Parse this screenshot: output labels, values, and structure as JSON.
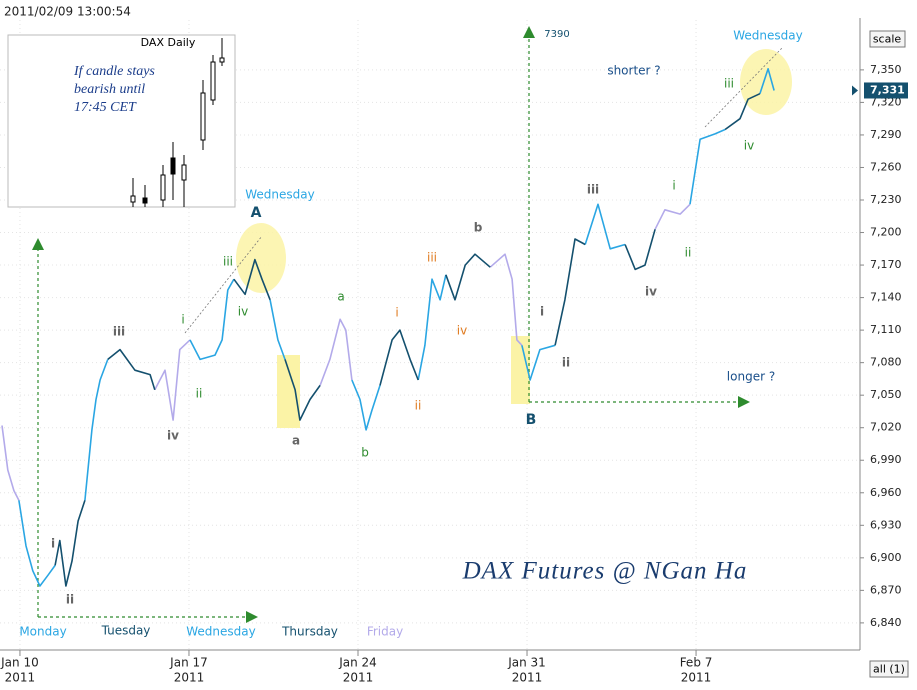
{
  "chart_data": {
    "type": "line",
    "timestamp": "2011/02/09 13:00:54",
    "watermark": "DAX Futures @ NGan Ha",
    "scale_button": "scale",
    "all_button": "all (1)",
    "inset": {
      "title": "DAX Daily",
      "note": [
        "If candle stays",
        "bearish until",
        "17:45 CET"
      ]
    },
    "last": {
      "value": 7331,
      "label": "7,331"
    },
    "xlim": [
      -0.59,
      24.85
    ],
    "xticks": [
      {
        "value": 0,
        "label": "Jan 10",
        "year": "2011"
      },
      {
        "value": 5,
        "label": "Jan 17",
        "year": "2011"
      },
      {
        "value": 10,
        "label": "Jan 24",
        "year": "2011"
      },
      {
        "value": 15,
        "label": "Jan 31",
        "year": "2011"
      },
      {
        "value": 20,
        "label": "Feb 7",
        "year": "2011"
      }
    ],
    "ylim": [
      6815,
      7396
    ],
    "yticks": [
      {
        "value": 6840,
        "label": "6,840"
      },
      {
        "value": 6870,
        "label": "6,870"
      },
      {
        "value": 6900,
        "label": "6,900"
      },
      {
        "value": 6930,
        "label": "6,930"
      },
      {
        "value": 6960,
        "label": "6,960"
      },
      {
        "value": 6990,
        "label": "6,990"
      },
      {
        "value": 7020,
        "label": "7,020"
      },
      {
        "value": 7050,
        "label": "7,050"
      },
      {
        "value": 7080,
        "label": "7,080"
      },
      {
        "value": 7110,
        "label": "7,110"
      },
      {
        "value": 7140,
        "label": "7,140"
      },
      {
        "value": 7170,
        "label": "7,170"
      },
      {
        "value": 7200,
        "label": "7,200"
      },
      {
        "value": 7230,
        "label": "7,230"
      },
      {
        "value": 7260,
        "label": "7,260"
      },
      {
        "value": 7290,
        "label": "7,290"
      },
      {
        "value": 7320,
        "label": "7,320"
      },
      {
        "value": 7350,
        "label": "7,350"
      }
    ],
    "grid": true,
    "series": [
      {
        "color": "#b3aaea",
        "x": [
          -0.53,
          -0.36,
          -0.18,
          -0.03,
          null,
          3.99,
          4.29,
          4.53,
          4.73,
          5.03,
          null,
          8.88,
          9.17,
          9.47,
          9.64,
          9.82,
          null,
          13.91,
          14.35,
          14.56,
          14.7,
          14.85,
          null,
          18.79,
          19.08,
          19.53,
          19.82
        ],
        "values": [
          7022,
          6981,
          6962,
          6953,
          null,
          7055,
          7073,
          7027,
          7092,
          7101,
          null,
          7059,
          7083,
          7120,
          7110,
          7064,
          null,
          7168,
          7180,
          7157,
          7101,
          7096,
          null,
          7203,
          7221,
          7217,
          7226
        ]
      },
      {
        "color": "#2aa6e3",
        "x": [
          -0.03,
          0.18,
          0.38,
          0.59,
          0.83,
          1.04,
          null,
          1.92,
          2.13,
          2.25,
          2.37,
          2.6,
          null,
          5.03,
          5.33,
          5.77,
          5.98,
          6.15,
          6.33,
          null,
          7.4,
          7.63,
          7.84,
          null,
          9.82,
          10.06,
          10.24,
          10.41,
          10.65,
          null,
          11.78,
          11.98,
          12.19,
          12.43,
          12.6,
          null,
          14.85,
          15.09,
          15.38,
          15.83,
          null,
          16.72,
          17.1,
          17.46,
          17.9,
          null,
          19.82,
          20.12,
          20.56,
          20.86,
          null,
          21.89,
          22.13,
          22.31
        ],
        "values": [
          6953,
          6911,
          6888,
          6874,
          6884,
          6893,
          null,
          6953,
          7018,
          7046,
          7064,
          7083,
          null,
          7101,
          7083,
          7087,
          7101,
          7147,
          7157,
          null,
          7138,
          7101,
          7083,
          null,
          7064,
          7046,
          7018,
          7036,
          7059,
          null,
          7064,
          7096,
          7157,
          7138,
          7161,
          null,
          7096,
          7064,
          7092,
          7096,
          null,
          7189,
          7226,
          7185,
          7189,
          null,
          7226,
          7286,
          7291,
          7295,
          null,
          7328,
          7351,
          7331
        ]
      },
      {
        "color": "#14506e",
        "x": [
          1.04,
          1.18,
          1.36,
          1.54,
          1.72,
          1.92,
          null,
          2.6,
          2.96,
          3.4,
          3.85,
          3.99,
          null,
          6.33,
          6.66,
          6.95,
          7.16,
          7.4,
          null,
          7.84,
          8.14,
          8.28,
          8.58,
          8.88,
          null,
          10.65,
          11.01,
          11.24,
          11.54,
          11.78,
          null,
          12.6,
          12.87,
          13.17,
          13.46,
          13.91,
          null,
          15.83,
          16.12,
          16.42,
          16.72,
          null,
          17.9,
          18.2,
          18.49,
          18.79,
          null,
          20.86,
          21.3,
          21.54,
          21.89
        ],
        "values": [
          6893,
          6916,
          6874,
          6897,
          6934,
          6953,
          null,
          7083,
          7092,
          7073,
          7069,
          7055,
          null,
          7157,
          7143,
          7175,
          7157,
          7138,
          null,
          7083,
          7055,
          7027,
          7046,
          7059,
          null,
          7059,
          7101,
          7110,
          7083,
          7064,
          null,
          7161,
          7138,
          7170,
          7180,
          7168,
          null,
          7096,
          7138,
          7194,
          7189,
          null,
          7189,
          7166,
          7170,
          7203,
          null,
          7295,
          7305,
          7323,
          7328
        ]
      }
    ],
    "day_labels": [
      {
        "text": "Monday",
        "color": "#2aa6e3"
      },
      {
        "text": "Tuesday",
        "color": "#14506e"
      },
      {
        "text": "Wednesday",
        "color": "#2aa6e3"
      },
      {
        "text": "Thursday",
        "color": "#14506e"
      },
      {
        "text": "Friday",
        "color": "#b3aaea"
      }
    ],
    "annotations": [
      {
        "text": "Wednesday",
        "color": "#2aa6e3"
      },
      {
        "text": "A",
        "color": "#14506e"
      },
      {
        "text": "iii",
        "color": "#2e8b2e"
      },
      {
        "text": "iv",
        "color": "#2e8b2e"
      },
      {
        "text": "i",
        "color": "#2e8b2e"
      },
      {
        "text": "ii",
        "color": "#2e8b2e"
      },
      {
        "text": "iii",
        "color": "#666666"
      },
      {
        "text": "iv",
        "color": "#666666"
      },
      {
        "text": "i",
        "color": "#666666"
      },
      {
        "text": "ii",
        "color": "#666666"
      },
      {
        "text": "a",
        "color": "#666666"
      },
      {
        "text": "a",
        "color": "#2e8b2e"
      },
      {
        "text": "b",
        "color": "#2e8b2e"
      },
      {
        "text": "iii",
        "color": "#e07b20"
      },
      {
        "text": "i",
        "color": "#e07b20"
      },
      {
        "text": "iv",
        "color": "#e07b20"
      },
      {
        "text": "ii",
        "color": "#e07b20"
      },
      {
        "text": "b",
        "color": "#666666"
      },
      {
        "text": "i",
        "color": "#666666"
      },
      {
        "text": "ii",
        "color": "#666666"
      },
      {
        "text": "B",
        "color": "#14506e"
      },
      {
        "text": "iii",
        "color": "#666666"
      },
      {
        "text": "iv",
        "color": "#666666"
      },
      {
        "text": "i",
        "color": "#2e8b2e"
      },
      {
        "text": "ii",
        "color": "#2e8b2e"
      },
      {
        "text": "iii",
        "color": "#2e8b2e"
      },
      {
        "text": "iv",
        "color": "#2e8b2e"
      },
      {
        "text": "Wednesday",
        "color": "#2aa6e3"
      },
      {
        "text": "shorter ?",
        "color": "#1a4f8a"
      },
      {
        "text": "longer ?",
        "color": "#1a4f8a"
      },
      {
        "text": "7390",
        "color": "#14506e"
      }
    ]
  }
}
